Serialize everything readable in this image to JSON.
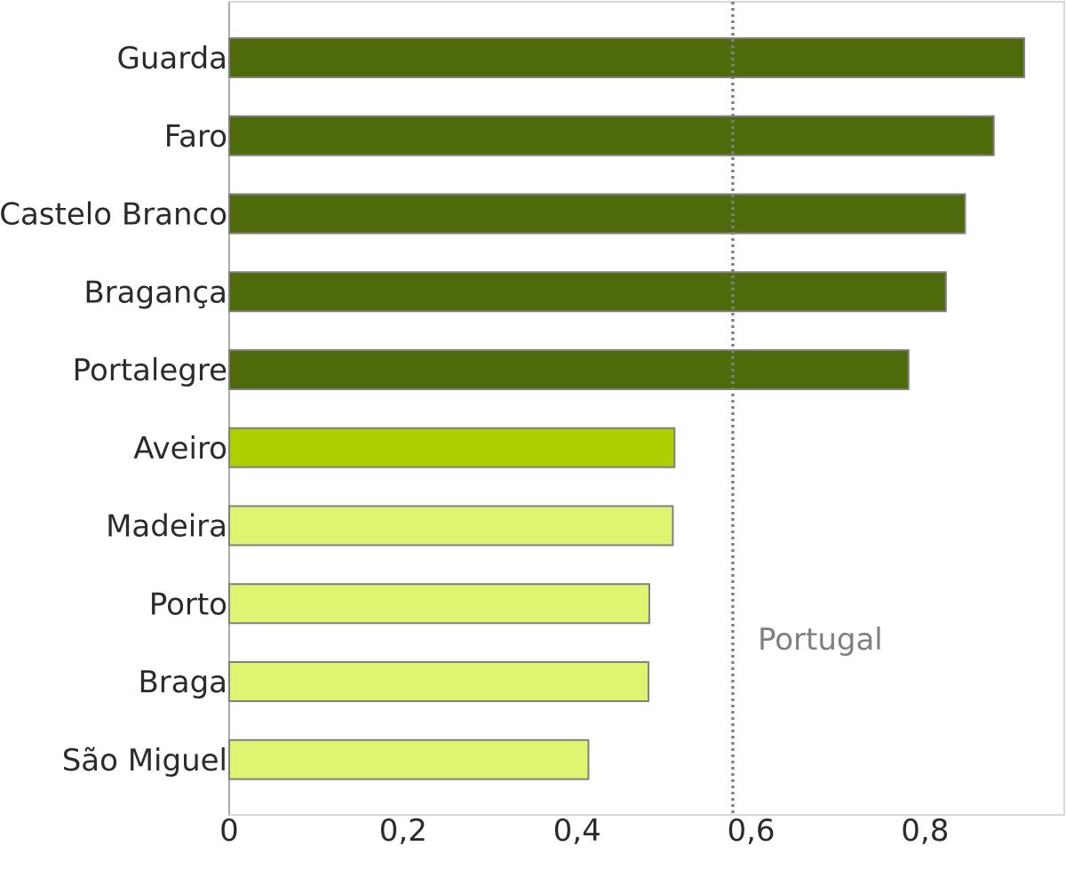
{
  "chart_data": {
    "type": "bar",
    "orientation": "horizontal",
    "categories": [
      "Guarda",
      "Faro",
      "Castelo Branco",
      "Bragança",
      "Portalegre",
      "Aveiro",
      "Madeira",
      "Porto",
      "Braga",
      "São Miguel"
    ],
    "values": [
      0.914,
      0.879,
      0.846,
      0.824,
      0.781,
      0.512,
      0.51,
      0.483,
      0.482,
      0.413
    ],
    "bar_colors": [
      "#4f6a0a",
      "#4f6a0a",
      "#4f6a0a",
      "#4f6a0a",
      "#4f6a0a",
      "#accf00",
      "#dff470",
      "#dff470",
      "#dff470",
      "#dff470"
    ],
    "bar_edge_color": "#808080",
    "xlim": [
      0,
      0.96
    ],
    "xticks": [
      0,
      0.2,
      0.4,
      0.6,
      0.8
    ],
    "xtick_labels": [
      "0",
      "0,2",
      "0,4",
      "0,6",
      "0,8"
    ],
    "reference_line": {
      "label": "Portugal",
      "value": 0.579,
      "style": "dotted",
      "color": "#808080"
    },
    "grid": false,
    "title": "",
    "xlabel": "",
    "ylabel": ""
  }
}
